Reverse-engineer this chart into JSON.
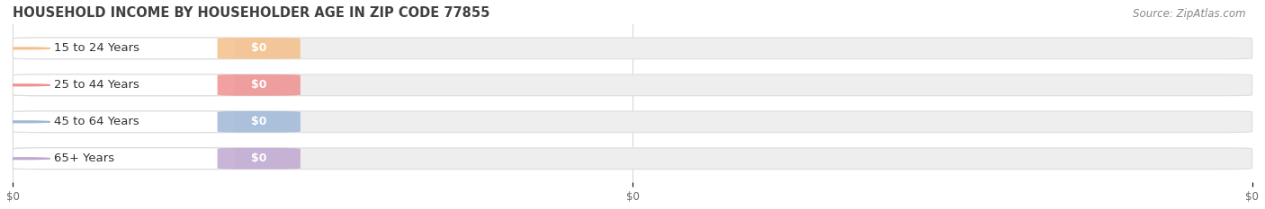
{
  "title": "HOUSEHOLD INCOME BY HOUSEHOLDER AGE IN ZIP CODE 77855",
  "source": "Source: ZipAtlas.com",
  "categories": [
    "15 to 24 Years",
    "25 to 44 Years",
    "45 to 64 Years",
    "65+ Years"
  ],
  "values": [
    0,
    0,
    0,
    0
  ],
  "bar_colors": [
    "#f5c08a",
    "#f09090",
    "#a0b8d8",
    "#c0a8d0"
  ],
  "background_color": "#ffffff",
  "bar_bg_color": "#eeeeee",
  "bar_bg_edge_color": "#dddddd",
  "figsize": [
    14.06,
    2.33
  ],
  "dpi": 100,
  "title_fontsize": 10.5,
  "source_fontsize": 8.5,
  "label_fontsize": 9.5,
  "value_fontsize": 9.0
}
